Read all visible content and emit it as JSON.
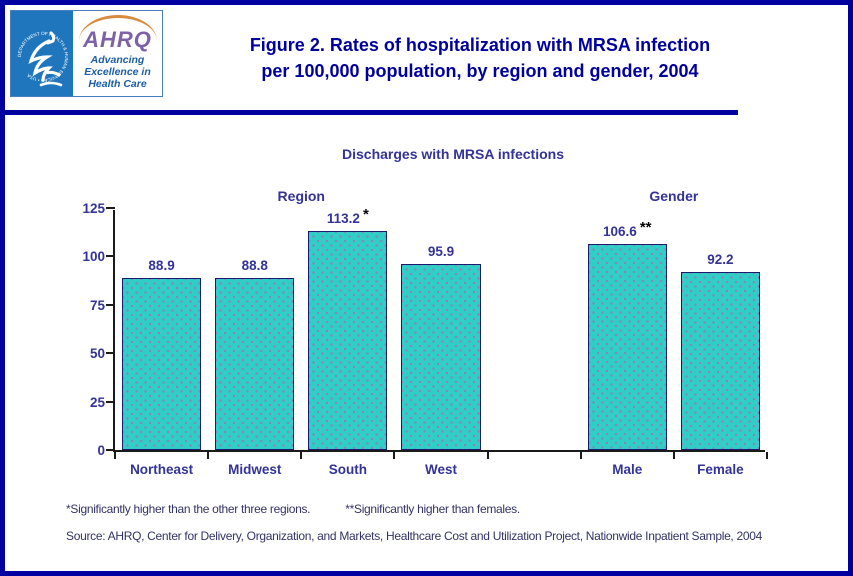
{
  "page": {
    "border_color": "#0000A0",
    "background": "#FFFFFF"
  },
  "header": {
    "logo": {
      "hhs_seal_text": "DEPARTMENT OF HEALTH & HUMAN SERVICES • USA",
      "ahrq_acronym": "AHRQ",
      "tagline_line1": "Advancing",
      "tagline_line2": "Excellence in",
      "tagline_line3": "Health Care",
      "hhs_blue": "#2076BC",
      "ahrq_purple": "#7D62A8",
      "tagline_blue": "#1B5EA8",
      "swoosh_orange": "#D98A3E"
    },
    "title_line1": "Figure 2. Rates of hospitalization with MRSA infection",
    "title_line2": "per 100,000 population, by region and gender, 2004",
    "title_color": "#0000A0"
  },
  "chart_data": {
    "type": "bar",
    "title": "Discharges with MRSA infections",
    "groups": [
      {
        "label": "Region",
        "categories": [
          "Northeast",
          "Midwest",
          "South",
          "West"
        ],
        "values": [
          88.9,
          88.8,
          113.2,
          95.9
        ],
        "notes": [
          "",
          "",
          "*",
          ""
        ]
      },
      {
        "label": "Gender",
        "categories": [
          "Male",
          "Female"
        ],
        "values": [
          106.6,
          92.2
        ],
        "notes": [
          "**",
          ""
        ]
      }
    ],
    "ylim": [
      0,
      125
    ],
    "yticks": [
      0,
      25,
      50,
      75,
      100,
      125
    ],
    "grid": false,
    "legend_position": "none",
    "bar_fill": "#2FCFC7",
    "bar_dot_color": "#8E81B8",
    "bar_border": "#1A1A6E",
    "label_color": "#333399",
    "axis_color": "#1a1a1a"
  },
  "footnotes": {
    "note1": "*Significantly higher than the other three regions.",
    "note2": "**Significantly higher than females.",
    "source_line": "Source: AHRQ, Center for Delivery, Organization, and Markets, Healthcare Cost and Utilization Project, Nationwide Inpatient Sample, 2004"
  }
}
